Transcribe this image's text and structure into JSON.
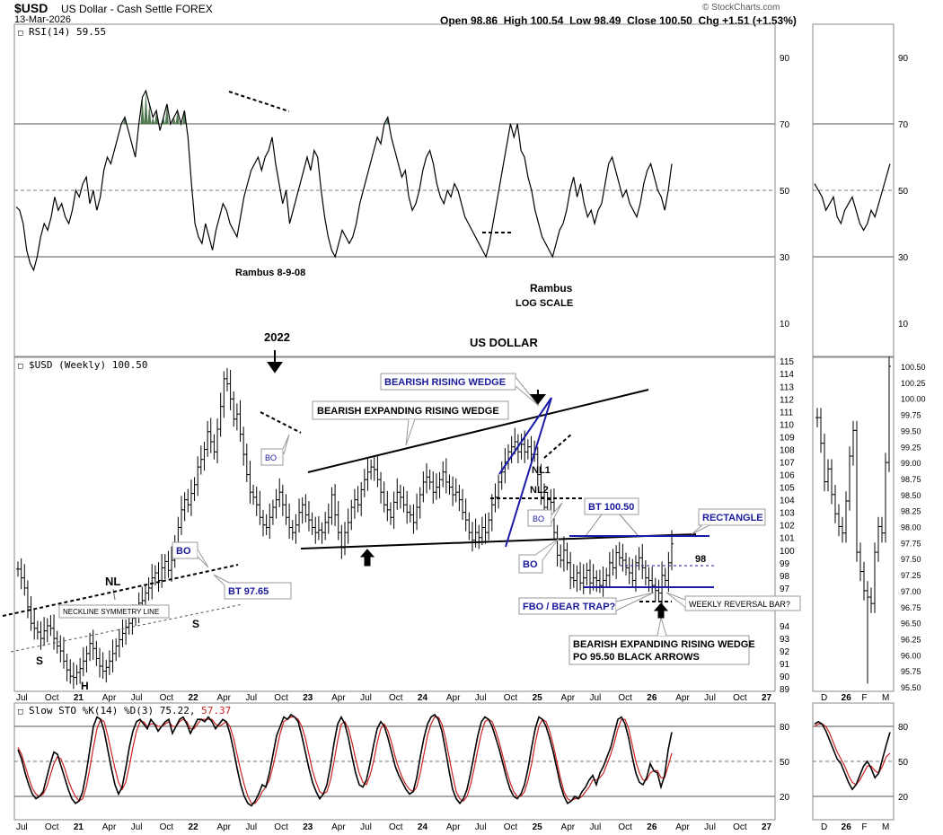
{
  "header": {
    "symbol": "$USD",
    "name": "US Dollar - Cash Settle",
    "exchange": "FOREX",
    "date": "13-Mar-2026",
    "ohlc": "Open 98.86  High 100.54  Low 98.49  Close 100.50  Chg +1.51 (+1.53%)",
    "brand": "© StockCharts.com"
  },
  "colors": {
    "annotation_blue": "#1a1a9c",
    "stoch_d": "#cc2222",
    "rsi_fill": "#4f7a4f"
  },
  "chart_data": [
    {
      "type": "line",
      "panel": "rsi",
      "title": "RSI(14) 59.55",
      "ylim": [
        0,
        100
      ],
      "yticks": [
        10,
        30,
        50,
        70,
        90
      ],
      "annotations": [
        "Rambus  8-9-08",
        "Rambus",
        "LOG SCALE"
      ],
      "values": [
        45,
        44,
        40,
        32,
        28,
        26,
        30,
        36,
        40,
        38,
        42,
        48,
        44,
        46,
        42,
        40,
        44,
        50,
        48,
        52,
        54,
        46,
        50,
        44,
        48,
        56,
        60,
        58,
        62,
        66,
        70,
        72,
        68,
        64,
        60,
        70,
        78,
        80,
        76,
        72,
        74,
        68,
        72,
        76,
        70,
        72,
        74,
        70,
        74,
        66,
        52,
        40,
        36,
        34,
        40,
        36,
        32,
        38,
        42,
        46,
        44,
        40,
        38,
        36,
        42,
        48,
        52,
        56,
        58,
        60,
        56,
        60,
        62,
        66,
        58,
        52,
        46,
        50,
        40,
        44,
        48,
        52,
        56,
        60,
        56,
        62,
        60,
        50,
        42,
        36,
        32,
        30,
        34,
        38,
        36,
        34,
        36,
        40,
        46,
        50,
        54,
        58,
        62,
        66,
        64,
        70,
        72,
        66,
        62,
        58,
        54,
        56,
        48,
        44,
        46,
        50,
        56,
        60,
        62,
        58,
        52,
        48,
        46,
        50,
        48,
        52,
        50,
        46,
        42,
        40,
        38,
        36,
        34,
        32,
        30,
        34,
        40,
        46,
        52,
        58,
        64,
        70,
        66,
        70,
        62,
        60,
        54,
        50,
        44,
        40,
        36,
        34,
        32,
        30,
        34,
        38,
        40,
        44,
        50,
        54,
        48,
        52,
        46,
        42,
        44,
        40,
        44,
        46,
        52,
        58,
        60,
        56,
        52,
        48,
        50,
        46,
        44,
        42,
        46,
        52,
        56,
        58,
        54,
        50,
        48,
        44,
        50,
        58
      ],
      "series_right": [
        52,
        50,
        48,
        44,
        46,
        48,
        42,
        40,
        44,
        46,
        48,
        44,
        40,
        38,
        40,
        44,
        42,
        46,
        50,
        54,
        58
      ]
    },
    {
      "type": "ohlc",
      "panel": "price",
      "title": "$USD (Weekly) 100.50",
      "subtitle": "US DOLLAR",
      "ylim": [
        88.8,
        115.3
      ],
      "yticks_left": [
        89,
        90,
        91,
        92,
        93,
        94,
        96,
        97,
        98,
        99,
        100,
        101,
        102,
        103,
        104,
        105,
        106,
        107,
        108,
        109,
        110,
        111,
        112,
        113,
        114,
        115
      ],
      "yticks_right": [
        "100.50",
        "100.25",
        "100.00",
        "99.75",
        "99.50",
        "99.25",
        "99.00",
        "98.75",
        "98.50",
        "98.25",
        "98.00",
        "97.75",
        "97.50",
        "97.25",
        "97.00",
        "96.75",
        "96.50",
        "96.25",
        "96.00",
        "95.75",
        "95.50"
      ],
      "x_labels": [
        "Jul",
        "Oct",
        "21",
        "Apr",
        "Jul",
        "Oct",
        "22",
        "Apr",
        "Jul",
        "Oct",
        "23",
        "Apr",
        "Jul",
        "Oct",
        "24",
        "Apr",
        "Jul",
        "Oct",
        "25",
        "Apr",
        "Jul",
        "Oct",
        "26",
        "Apr",
        "Jul",
        "Oct",
        "27"
      ],
      "x_labels_right": [
        "D",
        "26",
        "F",
        "M"
      ],
      "closes": [
        98.5,
        97.8,
        97.0,
        95.5,
        94.2,
        93.8,
        93.5,
        93.0,
        93.6,
        94.0,
        93.8,
        93.0,
        92.4,
        92.0,
        91.2,
        90.5,
        90.0,
        89.9,
        90.3,
        90.6,
        91.2,
        91.8,
        92.6,
        92.2,
        91.4,
        90.8,
        90.4,
        90.7,
        91.2,
        91.8,
        92.4,
        92.9,
        93.4,
        93.9,
        94.2,
        94.6,
        95.1,
        95.8,
        96.0,
        96.6,
        97.0,
        97.8,
        98.2,
        97.6,
        98.6,
        99.1,
        98.4,
        99.2,
        100.6,
        101.8,
        103.2,
        104.0,
        103.6,
        104.5,
        105.2,
        106.6,
        107.2,
        108.0,
        109.4,
        108.6,
        107.8,
        109.6,
        111.4,
        113.6,
        113.2,
        112.0,
        110.4,
        110.8,
        109.2,
        107.6,
        106.0,
        104.6,
        104.2,
        103.6,
        102.6,
        102.0,
        101.8,
        102.6,
        103.4,
        104.0,
        104.6,
        103.6,
        102.6,
        101.8,
        101.4,
        102.0,
        103.0,
        103.6,
        102.8,
        102.4,
        101.8,
        101.4,
        101.6,
        101.4,
        102.2,
        102.6,
        104.4,
        102.8,
        101.4,
        100.2,
        101.4,
        102.2,
        103.4,
        104.0,
        103.6,
        104.8,
        105.6,
        106.2,
        106.6,
        106.4,
        105.6,
        104.6,
        103.6,
        103.2,
        102.6,
        103.8,
        104.6,
        104.2,
        103.6,
        103.0,
        102.8,
        102.2,
        103.4,
        104.4,
        105.4,
        105.8,
        105.4,
        104.6,
        105.0,
        105.6,
        106.2,
        105.4,
        105.0,
        104.4,
        104.6,
        104.0,
        103.0,
        102.4,
        101.4,
        100.8,
        101.4,
        101.0,
        101.8,
        101.4,
        102.4,
        103.6,
        104.2,
        105.4,
        106.2,
        107.0,
        107.8,
        108.2,
        108.6,
        107.8,
        108.4,
        107.8,
        108.2,
        107.6,
        107.6,
        106.0,
        104.2,
        103.4,
        104.0,
        103.8,
        101.4,
        99.6,
        99.2,
        100.0,
        99.0,
        97.8,
        97.6,
        98.2,
        97.4,
        97.8,
        98.4,
        97.4,
        97.8,
        97.6,
        97.2,
        97.6,
        98.0,
        99.0,
        98.6,
        99.8,
        99.4,
        99.2,
        98.6,
        98.2,
        97.6,
        99.0,
        99.4,
        98.6,
        97.8,
        97.6,
        97.2,
        96.8,
        96.6,
        98.0,
        97.6,
        99.0,
        100.5
      ],
      "closes_right": [
        99.7,
        99.3,
        98.7,
        98.9,
        98.5,
        98.2,
        98.0,
        97.9,
        98.4,
        99.1,
        99.5,
        97.6,
        97.3,
        97.0,
        96.9,
        96.8,
        97.6,
        98.0,
        97.9,
        99.0,
        100.5
      ],
      "annotations": [
        "2022",
        "BO",
        "BO",
        "BT 97.65",
        "NL",
        "S",
        "H",
        "S",
        "NECKLINE SYMMETRY LINE",
        "BEARISH EXPANDING RISING WEDGE",
        "BEARISH RISING WEDGE",
        "NL1",
        "NL2",
        "BO",
        "BT 100.50",
        "BO",
        "RECTANGLE",
        "98",
        "FBO / BEAR TRAP?",
        "WEEKLY REVERSAL BAR?",
        "BEARISH EXPANDING RISING WEDGE",
        "PO 95.50 BLACK ARROWS"
      ]
    },
    {
      "type": "line",
      "panel": "stochastic",
      "title": "Slow STO %K(14) %D(3)",
      "k_value": "75.22",
      "d_value": "57.37",
      "ylim": [
        0,
        100
      ],
      "yticks": [
        20,
        50,
        80
      ],
      "series": [
        {
          "name": "%K",
          "values": [
            60,
            52,
            40,
            30,
            22,
            18,
            20,
            24,
            36,
            48,
            58,
            56,
            46,
            36,
            26,
            18,
            14,
            16,
            24,
            40,
            60,
            80,
            88,
            86,
            76,
            60,
            44,
            30,
            22,
            28,
            44,
            62,
            76,
            84,
            86,
            82,
            78,
            86,
            82,
            76,
            80,
            84,
            86,
            74,
            80,
            86,
            88,
            82,
            74,
            80,
            86,
            86,
            84,
            88,
            84,
            78,
            82,
            86,
            84,
            74,
            60,
            44,
            30,
            20,
            14,
            12,
            16,
            22,
            30,
            28,
            40,
            56,
            72,
            80,
            88,
            86,
            90,
            88,
            84,
            72,
            58,
            44,
            32,
            24,
            18,
            22,
            30,
            46,
            66,
            82,
            88,
            82,
            70,
            54,
            40,
            30,
            28,
            34,
            48,
            64,
            78,
            84,
            80,
            70,
            58,
            46,
            38,
            32,
            26,
            22,
            24,
            36,
            54,
            70,
            82,
            88,
            90,
            86,
            76,
            60,
            42,
            26,
            18,
            14,
            18,
            26,
            40,
            56,
            72,
            84,
            88,
            86,
            80,
            70,
            60,
            48,
            36,
            26,
            20,
            18,
            22,
            30,
            44,
            62,
            78,
            88,
            86,
            80,
            70,
            58,
            44,
            30,
            20,
            14,
            16,
            20,
            18,
            24,
            28,
            34,
            38,
            30,
            40,
            46,
            54,
            62,
            74,
            86,
            88,
            82,
            70,
            54,
            40,
            32,
            30,
            36,
            48,
            42,
            40,
            28,
            38,
            60,
            75
          ]
        },
        {
          "name": "%D",
          "values": [
            62,
            56,
            46,
            36,
            27,
            22,
            20,
            22,
            28,
            38,
            48,
            54,
            52,
            44,
            34,
            26,
            20,
            16,
            18,
            28,
            44,
            62,
            78,
            86,
            84,
            72,
            58,
            44,
            32,
            26,
            32,
            46,
            62,
            76,
            84,
            84,
            80,
            82,
            82,
            80,
            80,
            82,
            84,
            80,
            80,
            84,
            86,
            84,
            78,
            78,
            82,
            86,
            86,
            86,
            86,
            82,
            80,
            82,
            84,
            80,
            70,
            56,
            42,
            30,
            20,
            14,
            14,
            18,
            24,
            28,
            34,
            46,
            60,
            74,
            84,
            86,
            88,
            88,
            86,
            80,
            70,
            56,
            42,
            32,
            24,
            22,
            24,
            34,
            50,
            68,
            82,
            84,
            78,
            66,
            52,
            40,
            32,
            30,
            38,
            50,
            66,
            78,
            82,
            76,
            66,
            54,
            44,
            36,
            30,
            26,
            24,
            28,
            40,
            56,
            72,
            82,
            88,
            88,
            82,
            70,
            54,
            38,
            24,
            18,
            16,
            20,
            30,
            44,
            60,
            74,
            84,
            86,
            84,
            76,
            66,
            54,
            42,
            32,
            24,
            20,
            20,
            24,
            34,
            48,
            66,
            80,
            86,
            84,
            76,
            64,
            50,
            36,
            24,
            18,
            16,
            18,
            18,
            20,
            24,
            28,
            34,
            34,
            36,
            40,
            48,
            56,
            66,
            78,
            86,
            86,
            78,
            64,
            50,
            40,
            34,
            34,
            40,
            42,
            42,
            36,
            36,
            46,
            57
          ]
        }
      ],
      "series_right": [
        {
          "name": "%K",
          "values": [
            82,
            84,
            82,
            76,
            68,
            60,
            52,
            48,
            40,
            32,
            26,
            30,
            38,
            46,
            50,
            44,
            36,
            40,
            52,
            64,
            75
          ]
        },
        {
          "name": "%D",
          "values": [
            80,
            82,
            82,
            80,
            74,
            66,
            58,
            52,
            46,
            38,
            32,
            30,
            34,
            40,
            46,
            46,
            42,
            40,
            46,
            54,
            57
          ]
        }
      ]
    }
  ]
}
